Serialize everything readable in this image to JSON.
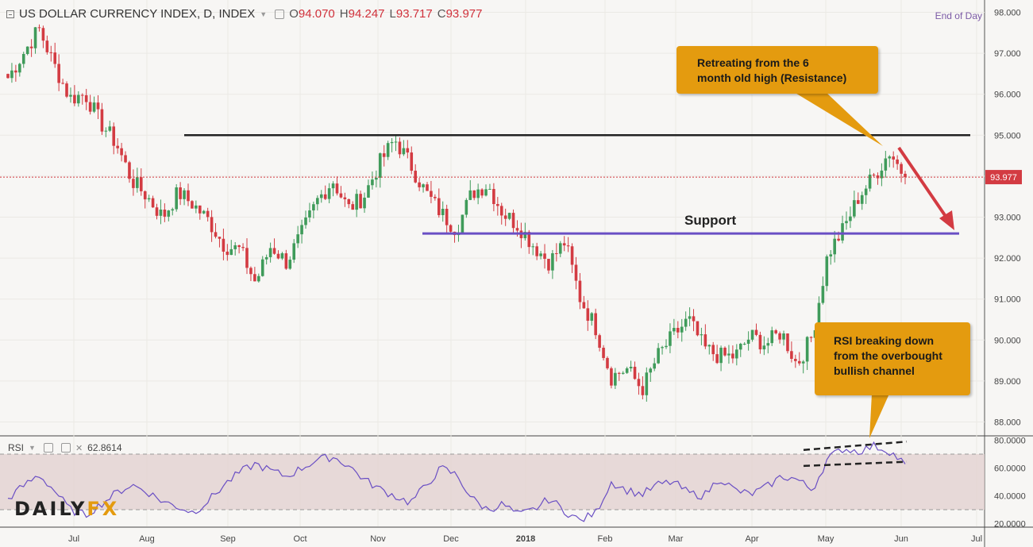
{
  "header": {
    "symbol": "US DOLLAR CURRENCY INDEX, D, INDEX",
    "open_label": "O",
    "open": "94.070",
    "high_label": "H",
    "high": "94.247",
    "low_label": "L",
    "low": "93.717",
    "close_label": "C",
    "close": "93.977"
  },
  "end_of_day": "End of Day",
  "rsi_header": {
    "label": "RSI",
    "value": "62.8614"
  },
  "current_price_label": "93.977",
  "annotations": {
    "resistance_callout": [
      "Retreating from the 6",
      "month old high (Resistance)"
    ],
    "rsi_callout": [
      "RSI breaking down",
      "from the overbought",
      "bullish channel"
    ],
    "support_label": "Support"
  },
  "logo": {
    "part1": "DAILY",
    "part2": "FX"
  },
  "colors": {
    "up": "#3f9b5a",
    "down": "#d33b42",
    "resistance_line": "#222222",
    "support_line": "#6a4fc4",
    "rsi_line": "#6a4fc4",
    "callout": "#e49b0f",
    "arrow": "#d33b42",
    "rsi_band": "#e2cfcf"
  },
  "chart_data": [
    {
      "type": "candlestick",
      "x_ticks": [
        "Jul",
        "Aug",
        "Sep",
        "Oct",
        "Nov",
        "Dec",
        "2018",
        "Feb",
        "Mar",
        "Apr",
        "May",
        "Jun",
        "Jul"
      ],
      "y_ticks": [
        "98.000",
        "97.000",
        "96.000",
        "95.000",
        "94.000",
        "93.000",
        "92.000",
        "91.000",
        "90.000",
        "89.000",
        "88.000"
      ],
      "ylim": [
        87.7,
        98.3
      ],
      "close_path_anchors": [
        96.4,
        97.0,
        97.6,
        96.7,
        95.9,
        96.0,
        95.3,
        94.8,
        93.9,
        93.5,
        93.0,
        93.6,
        93.3,
        92.9,
        92.3,
        92.2,
        91.4,
        92.3,
        91.9,
        92.6,
        93.4,
        93.9,
        93.2,
        93.5,
        94.3,
        94.9,
        94.3,
        93.6,
        93.1,
        92.7,
        93.6,
        93.8,
        93.1,
        92.8,
        92.3,
        91.9,
        92.4,
        91.0,
        90.3,
        89.1,
        89.3,
        88.8,
        89.6,
        90.1,
        90.5,
        89.8,
        89.6,
        89.6,
        90.1,
        89.9,
        90.2,
        89.4,
        90.1,
        92.1,
        92.7,
        93.5,
        94.0,
        94.6,
        93.977
      ],
      "resistance": 95.0,
      "support": 92.6,
      "current_price": 93.977
    },
    {
      "type": "line",
      "name": "RSI",
      "y_ticks": [
        "80.0000",
        "60.0000",
        "40.0000",
        "20.0000"
      ],
      "ylim": [
        18,
        82
      ],
      "band": [
        30,
        70
      ],
      "path_anchors": [
        38,
        47,
        55,
        44,
        30,
        26,
        34,
        42,
        48,
        43,
        36,
        32,
        28,
        37,
        48,
        57,
        63,
        58,
        54,
        60,
        66,
        68,
        62,
        52,
        45,
        40,
        35,
        47,
        60,
        55,
        38,
        30,
        34,
        26,
        30,
        38,
        29,
        22,
        28,
        50,
        44,
        41,
        48,
        50,
        42,
        40,
        53,
        44,
        41,
        46,
        54,
        52,
        44,
        67,
        74,
        72,
        76,
        72,
        62.86
      ]
    }
  ]
}
